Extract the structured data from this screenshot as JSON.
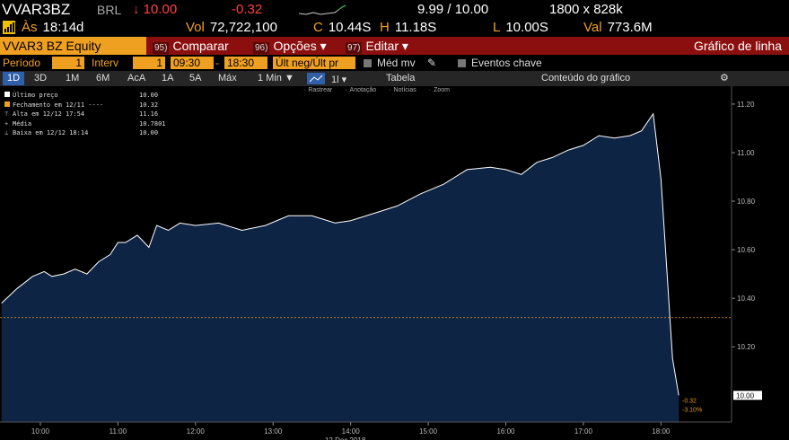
{
  "header": {
    "ticker": "VVAR3BZ",
    "currency": "BRL",
    "last": "↓ 10.00",
    "change": "-0.32",
    "bid_ask": "9.99 / 10.00",
    "size": "1800 x 828k"
  },
  "quote": [
    {
      "label": "Às",
      "value": "18:14d"
    },
    {
      "label": "Vol",
      "value": "72,722,100"
    },
    {
      "label": "C",
      "value": "10.44S"
    },
    {
      "label": "H",
      "value": "11.18S"
    },
    {
      "label": "L",
      "value": "10.00S"
    },
    {
      "label": "Val",
      "value": "773.6M"
    }
  ],
  "toolbar": {
    "security": "VVAR3 BZ Equity",
    "menus": [
      {
        "num": "95)",
        "label": "Comparar"
      },
      {
        "num": "96)",
        "label": "Opções ▾"
      },
      {
        "num": "97)",
        "label": "Editar ▾"
      }
    ],
    "chart_type": "Gráfico de linha"
  },
  "settings": {
    "period_label": "Período",
    "period": "1",
    "interval_label": "Interv",
    "interval": "1",
    "start": "09:30",
    "dash": "-",
    "end": "18:30",
    "source": "Últ neg/Últ pr",
    "moving_avg": "Méd mv",
    "events": "Eventos chave"
  },
  "ranges": [
    "1D",
    "3D",
    "1M",
    "6M",
    "AcA",
    "1A",
    "5A",
    "Máx"
  ],
  "frequency": "1 Min ▼",
  "table": "Tabela",
  "content": "Conteúdo do gráfico",
  "tools": [
    "Rastrear",
    "Anotação",
    "Notícias",
    "Zoom"
  ],
  "legend": [
    {
      "label": "Último preço",
      "value": "10.00"
    },
    {
      "label": "Fechamento em 12/11 ----",
      "value": "10.32"
    },
    {
      "label": "Alta em 12/12 17:54",
      "value": "11.16"
    },
    {
      "label": "Média",
      "value": "10.7801"
    },
    {
      "label": "Baixa em 12/12 18:14",
      "value": "10.00"
    }
  ],
  "chart_data": {
    "type": "area",
    "x": [
      9.5,
      9.7,
      9.9,
      10.05,
      10.15,
      10.3,
      10.45,
      10.6,
      10.75,
      10.9,
      11.0,
      11.1,
      11.25,
      11.4,
      11.5,
      11.65,
      11.8,
      12.0,
      12.3,
      12.6,
      12.9,
      13.2,
      13.5,
      13.8,
      14.0,
      14.3,
      14.6,
      14.9,
      15.2,
      15.5,
      15.8,
      16.0,
      16.2,
      16.4,
      16.6,
      16.8,
      17.0,
      17.2,
      17.4,
      17.6,
      17.75,
      17.9,
      18.0,
      18.15,
      18.23
    ],
    "series": [
      {
        "color": "#ffffff",
        "fill": "#0e2444",
        "values": [
          10.38,
          10.44,
          10.49,
          10.51,
          10.49,
          10.5,
          10.52,
          10.5,
          10.55,
          10.58,
          10.63,
          10.63,
          10.66,
          10.61,
          10.7,
          10.68,
          10.71,
          10.7,
          10.71,
          10.68,
          10.7,
          10.74,
          10.74,
          10.71,
          10.72,
          10.75,
          10.78,
          10.83,
          10.87,
          10.93,
          10.94,
          10.93,
          10.91,
          10.96,
          10.98,
          11.01,
          11.03,
          11.07,
          11.06,
          11.07,
          11.09,
          11.16,
          10.89,
          10.15,
          10.0
        ]
      }
    ],
    "xlim": [
      9.48,
      18.91
    ],
    "xticks": [
      {
        "value": 10,
        "label": "10:00"
      },
      {
        "value": 11,
        "label": "11:00"
      },
      {
        "value": 12,
        "label": "12:00"
      },
      {
        "value": 13,
        "label": "13:00"
      },
      {
        "value": 14,
        "label": "14:00"
      },
      {
        "value": 15,
        "label": "15:00"
      },
      {
        "value": 16,
        "label": "16:00"
      },
      {
        "value": 17,
        "label": "17:00"
      },
      {
        "value": 18,
        "label": "18:00"
      }
    ],
    "ylim": [
      9.89,
      11.27
    ],
    "yticks": [
      {
        "value": 10.2,
        "label": "10.20"
      },
      {
        "value": 10.4,
        "label": "10.40"
      },
      {
        "value": 10.6,
        "label": "10.60"
      },
      {
        "value": 10.8,
        "label": "10.80"
      },
      {
        "value": 11.0,
        "label": "11.00"
      },
      {
        "value": 11.2,
        "label": "11.20"
      }
    ],
    "reference_line": {
      "value": 10.32,
      "color": "#e39b1c"
    },
    "last_price": {
      "value": 10.0,
      "label": "10.00"
    },
    "change_labels": [
      "-0.32",
      "-3.10%"
    ],
    "date_label": "12 Dec 2018",
    "grid": false
  }
}
